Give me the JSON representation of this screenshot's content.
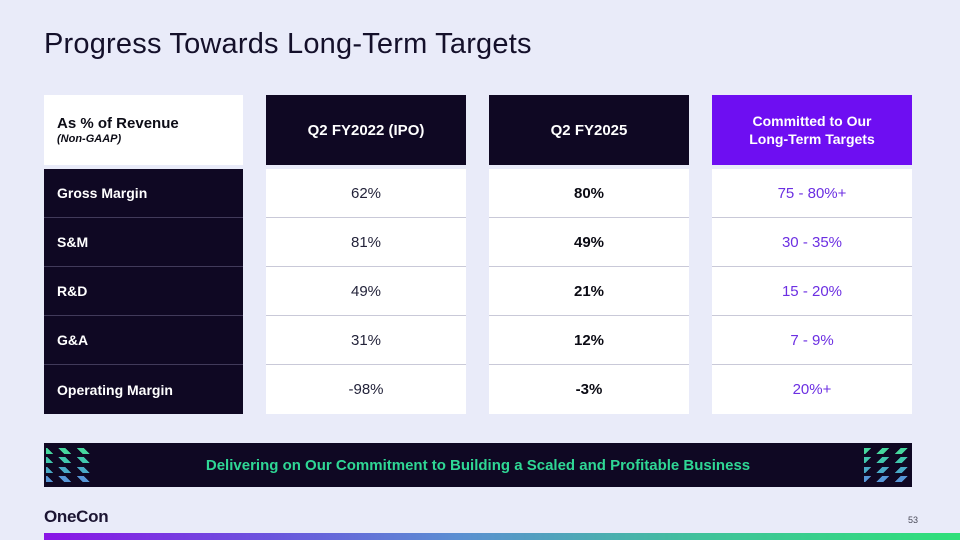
{
  "title": "Progress Towards Long-Term Targets",
  "table": {
    "corner": {
      "title": "As % of Revenue",
      "subtitle": "(Non-GAAP)"
    },
    "columns": [
      "Q2 FY2022 (IPO)",
      "Q2 FY2025",
      "Committed to Our Long-Term Targets"
    ],
    "rows": [
      {
        "label": "Gross Margin",
        "ipo": "62%",
        "current": "80%",
        "target": "75 - 80%+"
      },
      {
        "label": "S&M",
        "ipo": "81%",
        "current": "49%",
        "target": "30 - 35%"
      },
      {
        "label": "R&D",
        "ipo": "49%",
        "current": "21%",
        "target": "15 - 20%"
      },
      {
        "label": "G&A",
        "ipo": "31%",
        "current": "12%",
        "target": "7 - 9%"
      },
      {
        "label": "Operating Margin",
        "ipo": "-98%",
        "current": "-3%",
        "target": "20%+"
      }
    ]
  },
  "banner": {
    "text": "Delivering on Our Commitment to Building a Scaled and Profitable Business"
  },
  "footer": {
    "logo": "OneCon",
    "page_number": "53"
  },
  "colors": {
    "background": "#e9ebf9",
    "dark_navy": "#0f0823",
    "header_purple": "#6e0ef2",
    "target_text_purple": "#6c2fe2",
    "banner_text_green": "#2fd795",
    "stripe_teal": "#46d79e",
    "stripe_blue": "#5796d7",
    "gradient_bar_left": "#8a15e6",
    "gradient_bar_mid": "#5b8ed2",
    "gradient_bar_right": "#2fe07a"
  }
}
